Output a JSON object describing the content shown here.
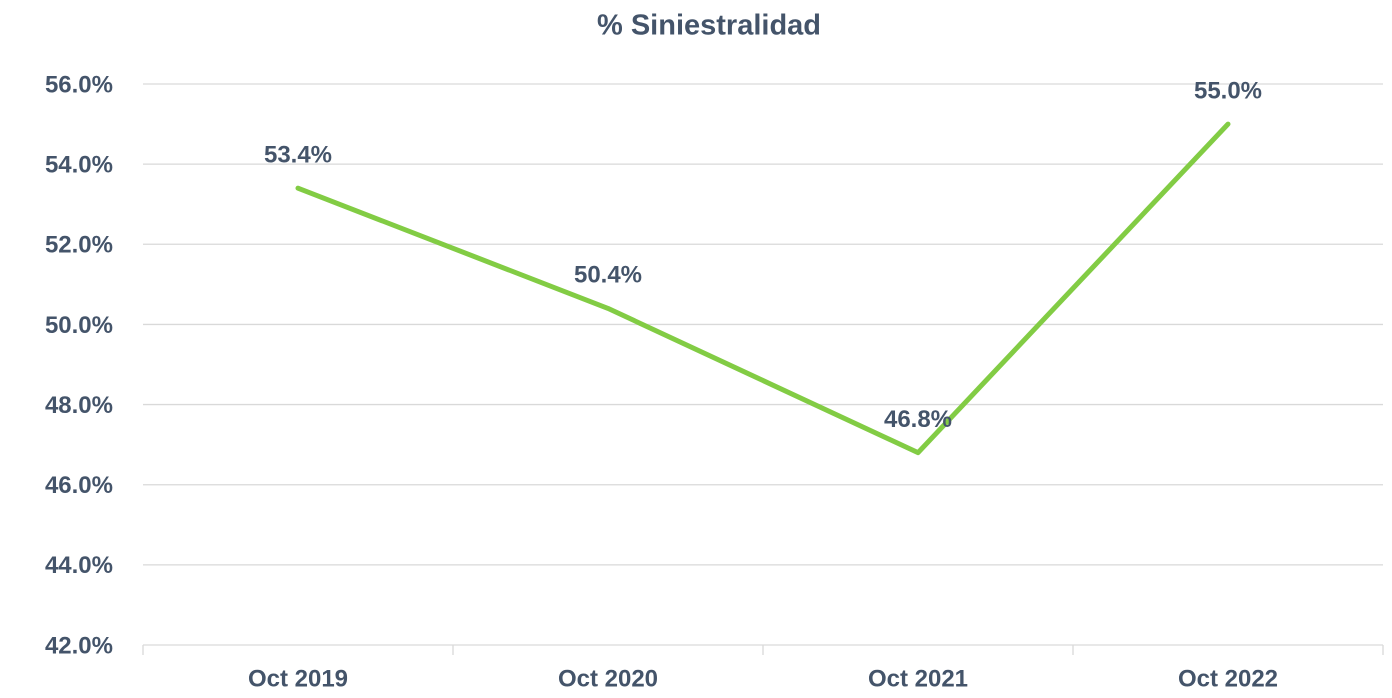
{
  "chart_data": {
    "type": "line",
    "title": "% Siniestralidad",
    "categories": [
      "Oct 2019",
      "Oct 2020",
      "Oct 2021",
      "Oct 2022"
    ],
    "values": [
      53.4,
      50.4,
      46.8,
      55.0
    ],
    "value_labels": [
      "53.4%",
      "50.4%",
      "46.8%",
      "55.0%"
    ],
    "color": "#82cc44",
    "ylim": [
      42,
      56
    ],
    "yticks": [
      {
        "value": 42,
        "label": "42.0%"
      },
      {
        "value": 44,
        "label": "44.0%"
      },
      {
        "value": 46,
        "label": "46.0%"
      },
      {
        "value": 48,
        "label": "48.0%"
      },
      {
        "value": 50,
        "label": "50.0%"
      },
      {
        "value": 52,
        "label": "52.0%"
      },
      {
        "value": 54,
        "label": "54.0%"
      },
      {
        "value": 56,
        "label": "56.0%"
      }
    ],
    "grid": true
  }
}
